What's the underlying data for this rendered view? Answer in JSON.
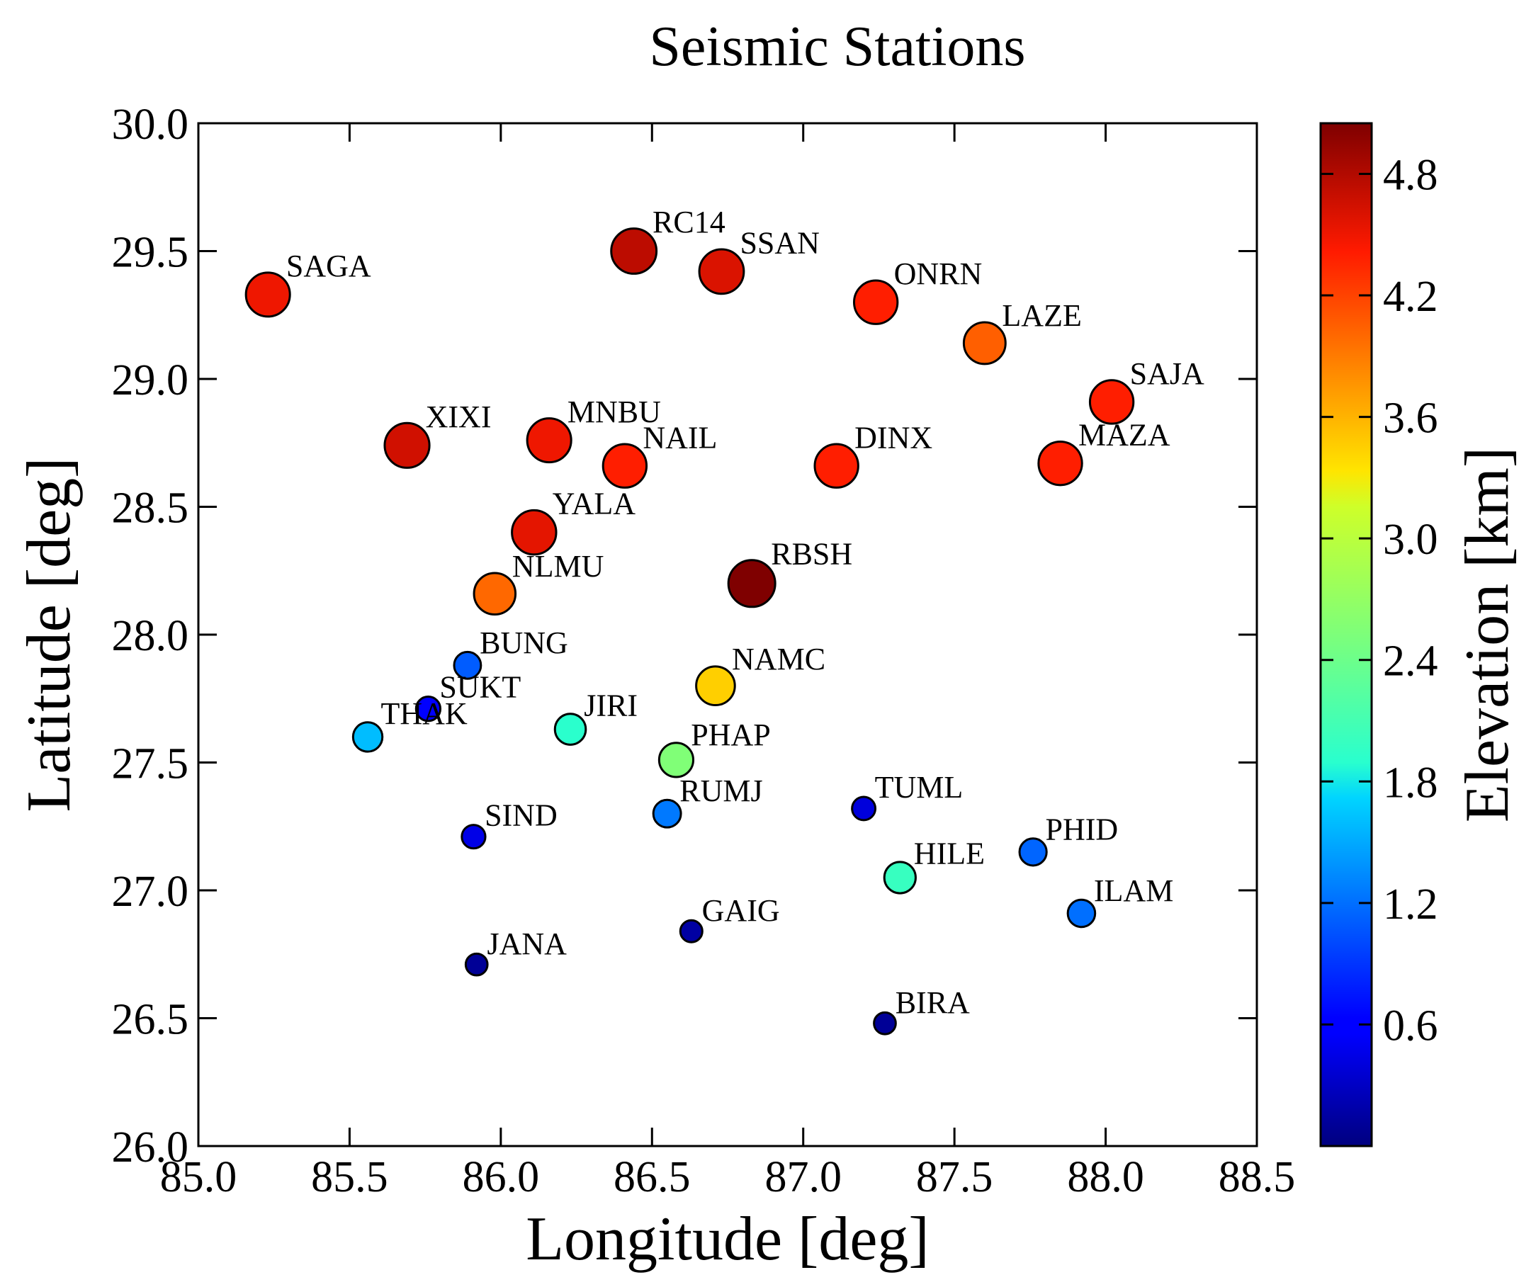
{
  "chart_data": {
    "type": "scatter",
    "title": "Seismic Stations",
    "xlabel": "Longitude [deg]",
    "ylabel": "Latitude [deg]",
    "xlim": [
      85.0,
      88.5
    ],
    "ylim": [
      26.0,
      30.0
    ],
    "xticks": [
      "85.0",
      "85.5",
      "86.0",
      "86.5",
      "87.0",
      "87.5",
      "88.0",
      "88.5"
    ],
    "yticks": [
      "26.0",
      "26.5",
      "27.0",
      "27.5",
      "28.0",
      "28.5",
      "29.0",
      "29.5",
      "30.0"
    ],
    "grid": false,
    "marker_size_and_color_encode": "elevation",
    "colorbar": {
      "label": "Elevation [km]",
      "colormap": "jet",
      "range": [
        0.0,
        5.05
      ],
      "ticks": [
        "0.6",
        "1.2",
        "1.8",
        "2.4",
        "3.0",
        "3.6",
        "4.2",
        "4.8"
      ]
    },
    "stations": [
      {
        "name": "SAGA",
        "lon": 85.23,
        "lat": 29.33,
        "elev": 4.5
      },
      {
        "name": "RC14",
        "lon": 86.44,
        "lat": 29.5,
        "elev": 4.75
      },
      {
        "name": "SSAN",
        "lon": 86.73,
        "lat": 29.42,
        "elev": 4.6
      },
      {
        "name": "ONRN",
        "lon": 87.24,
        "lat": 29.3,
        "elev": 4.4
      },
      {
        "name": "LAZE",
        "lon": 87.6,
        "lat": 29.14,
        "elev": 4.05
      },
      {
        "name": "SAJA",
        "lon": 88.02,
        "lat": 28.91,
        "elev": 4.4
      },
      {
        "name": "XIXI",
        "lon": 85.69,
        "lat": 28.74,
        "elev": 4.65
      },
      {
        "name": "MNBU",
        "lon": 86.16,
        "lat": 28.76,
        "elev": 4.5
      },
      {
        "name": "NAIL",
        "lon": 86.41,
        "lat": 28.66,
        "elev": 4.4
      },
      {
        "name": "DINX",
        "lon": 87.11,
        "lat": 28.66,
        "elev": 4.4
      },
      {
        "name": "MAZA",
        "lon": 87.85,
        "lat": 28.67,
        "elev": 4.4
      },
      {
        "name": "YALA",
        "lon": 86.11,
        "lat": 28.4,
        "elev": 4.55
      },
      {
        "name": "RBSH",
        "lon": 86.83,
        "lat": 28.2,
        "elev": 5.05
      },
      {
        "name": "NLMU",
        "lon": 85.98,
        "lat": 28.16,
        "elev": 4.0
      },
      {
        "name": "BUNG",
        "lon": 85.89,
        "lat": 27.88,
        "elev": 1.1
      },
      {
        "name": "NAMC",
        "lon": 86.71,
        "lat": 27.8,
        "elev": 3.45
      },
      {
        "name": "SUKT",
        "lon": 85.76,
        "lat": 27.71,
        "elev": 0.6
      },
      {
        "name": "THAK",
        "lon": 85.56,
        "lat": 27.6,
        "elev": 1.6
      },
      {
        "name": "JIRI",
        "lon": 86.23,
        "lat": 27.63,
        "elev": 1.9
      },
      {
        "name": "PHAP",
        "lon": 86.58,
        "lat": 27.51,
        "elev": 2.55
      },
      {
        "name": "RUMJ",
        "lon": 86.55,
        "lat": 27.3,
        "elev": 1.25
      },
      {
        "name": "TUML",
        "lon": 87.2,
        "lat": 27.32,
        "elev": 0.4
      },
      {
        "name": "SIND",
        "lon": 85.91,
        "lat": 27.21,
        "elev": 0.45
      },
      {
        "name": "PHID",
        "lon": 87.76,
        "lat": 27.15,
        "elev": 1.15
      },
      {
        "name": "HILE",
        "lon": 87.32,
        "lat": 27.05,
        "elev": 2.0
      },
      {
        "name": "ILAM",
        "lon": 87.92,
        "lat": 26.91,
        "elev": 1.2
      },
      {
        "name": "GAIG",
        "lon": 86.63,
        "lat": 26.84,
        "elev": 0.15
      },
      {
        "name": "JANA",
        "lon": 85.92,
        "lat": 26.71,
        "elev": 0.1
      },
      {
        "name": "BIRA",
        "lon": 87.27,
        "lat": 26.48,
        "elev": 0.1
      }
    ]
  }
}
